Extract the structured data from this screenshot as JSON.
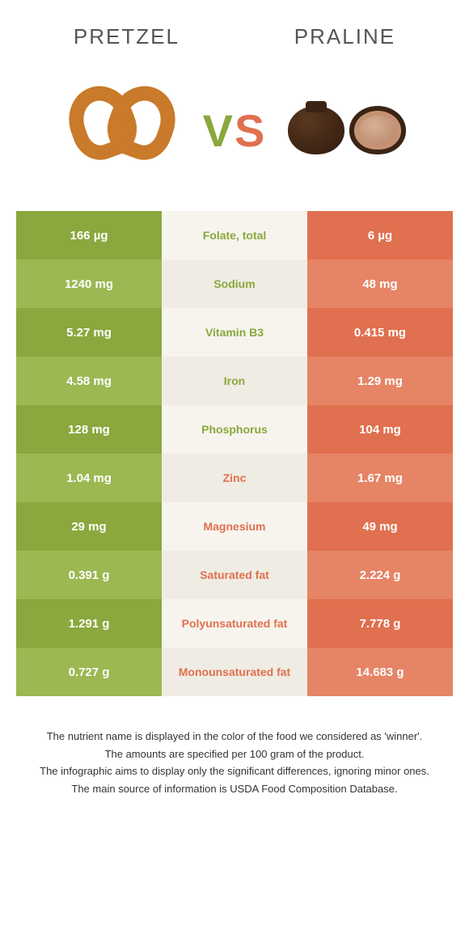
{
  "header": {
    "left_title": "Pretzel",
    "right_title": "Praline",
    "vs_v": "V",
    "vs_s": "S"
  },
  "colors": {
    "green_dark": "#8aa83d",
    "green_light": "#9bb852",
    "orange_dark": "#e0704f",
    "orange_light": "#e68466",
    "mid_light": "#f7f4ee",
    "mid_dark": "#efece3",
    "text_green": "#8aa83d",
    "text_orange": "#e0704f"
  },
  "table": {
    "rows": [
      {
        "left": "166 µg",
        "label": "Folate, total",
        "right": "6 µg",
        "winner": "left"
      },
      {
        "left": "1240 mg",
        "label": "Sodium",
        "right": "48 mg",
        "winner": "left"
      },
      {
        "left": "5.27 mg",
        "label": "Vitamin B3",
        "right": "0.415 mg",
        "winner": "left"
      },
      {
        "left": "4.58 mg",
        "label": "Iron",
        "right": "1.29 mg",
        "winner": "left"
      },
      {
        "left": "128 mg",
        "label": "Phosphorus",
        "right": "104 mg",
        "winner": "left"
      },
      {
        "left": "1.04 mg",
        "label": "Zinc",
        "right": "1.67 mg",
        "winner": "right"
      },
      {
        "left": "29 mg",
        "label": "Magnesium",
        "right": "49 mg",
        "winner": "right"
      },
      {
        "left": "0.391 g",
        "label": "Saturated fat",
        "right": "2.224 g",
        "winner": "right"
      },
      {
        "left": "1.291 g",
        "label": "Polyunsaturated fat",
        "right": "7.778 g",
        "winner": "right"
      },
      {
        "left": "0.727 g",
        "label": "Monounsaturated fat",
        "right": "14.683 g",
        "winner": "right"
      }
    ]
  },
  "footnotes": [
    "The nutrient name is displayed in the color of the food we considered as 'winner'.",
    "The amounts are specified per 100 gram of the product.",
    "The infographic aims to display only the significant differences, ignoring minor ones.",
    "The main source of information is USDA Food Composition Database."
  ]
}
